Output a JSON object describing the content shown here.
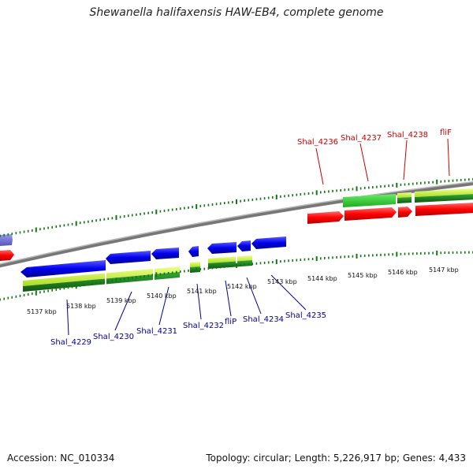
{
  "title": "Shewanella halifaxensis HAW-EB4, complete genome",
  "footer": {
    "accession": "Accession: NC_010334",
    "summary": "Topology: circular; Length: 5,226,917 bp; Genes: 4,433"
  },
  "kbp_labels": [
    "5137 kbp",
    "5138 kbp",
    "5139 kbp",
    "5140 kbp",
    "5141 kbp",
    "5142 kbp",
    "5143 kbp",
    "5144 kbp",
    "5145 kbp",
    "5146 kbp",
    "5147 kbp"
  ],
  "gene_labels_top": [
    "Shal_4236",
    "Shal_4237",
    "Shal_4238",
    "fliF"
  ],
  "gene_labels_bottom": [
    "Shal_4229",
    "Shal_4230",
    "Shal_4231",
    "Shal_4232",
    "fliP",
    "Shal_4234",
    "Shal_4235"
  ],
  "colors": {
    "plus_strand_label": "#cc0000",
    "minus_strand_label": "#000099",
    "forward_gene": "#ff0000",
    "reverse_gene": "#0000ee",
    "cds_light": "#ccff33",
    "cds_dark": "#228822",
    "tick": "#117711",
    "backbone": "#888888"
  }
}
